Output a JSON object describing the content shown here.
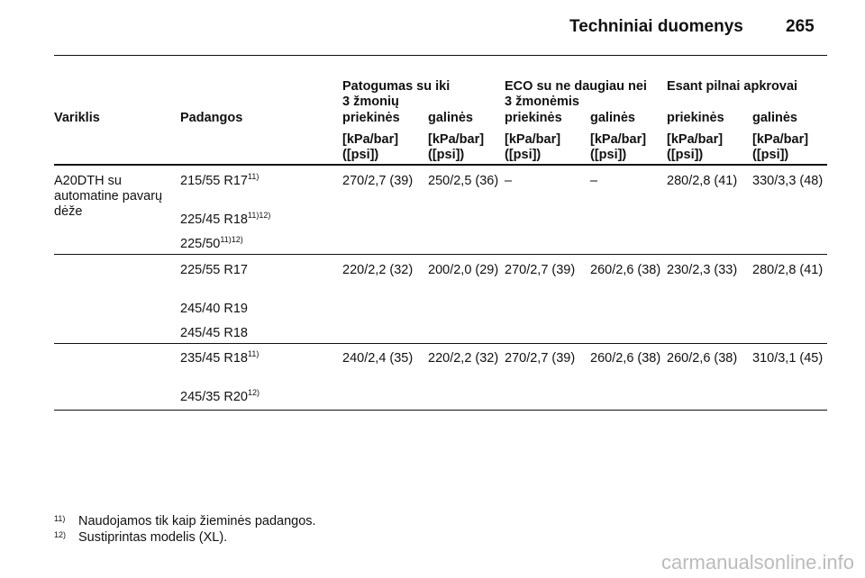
{
  "header": {
    "title": "Techniniai duomenys",
    "page": "265"
  },
  "table": {
    "group_headers": [
      "Patogumas su iki\n3 žmonių",
      "ECO su ne daugiau nei\n3 žmonėmis",
      "Esant pilnai apkrovai"
    ],
    "columns": [
      "Variklis",
      "Padangos",
      "priekinės",
      "galinės",
      "priekinės",
      "galinės",
      "priekinės",
      "galinės"
    ],
    "units": [
      "[kPa/bar]\n([psi])",
      "[kPa/bar]\n([psi])",
      "[kPa/bar]\n([psi])",
      "[kPa/bar]\n([psi])",
      "[kPa/bar]\n([psi])",
      "[kPa/bar]\n([psi])"
    ],
    "rows": [
      {
        "engine": "A20DTH su\nautomatine pavarų\ndėže",
        "tires": [
          {
            "size": "215/55 R17",
            "note": "11)"
          },
          {
            "size": "225/45 R18",
            "note": "11)12)"
          },
          {
            "size": "225/50",
            "note": "11)12)"
          }
        ],
        "values": [
          "270/2,7 (39)",
          "250/2,5 (36)",
          "–",
          "–",
          "280/2,8 (41)",
          "330/3,3 (48)"
        ]
      },
      {
        "tires": [
          {
            "size": "225/55 R17"
          },
          {
            "size": "245/40 R19"
          },
          {
            "size": "245/45 R18"
          }
        ],
        "values": [
          "220/2,2 (32)",
          "200/2,0 (29)",
          "270/2,7 (39)",
          "260/2,6 (38)",
          "230/2,3 (33)",
          "280/2,8 (41)"
        ]
      },
      {
        "tires": [
          {
            "size": "235/45 R18",
            "note": "11)"
          },
          {
            "size": "245/35 R20",
            "note": "12)"
          }
        ],
        "values": [
          "240/2,4 (35)",
          "220/2,2 (32)",
          "270/2,7 (39)",
          "260/2,6 (38)",
          "260/2,6 (38)",
          "310/3,1 (45)"
        ]
      }
    ]
  },
  "footnotes": [
    {
      "mark": "11)",
      "text": "Naudojamos tik kaip žieminės padangos."
    },
    {
      "mark": "12)",
      "text": "Sustiprintas modelis (XL)."
    }
  ],
  "watermark": "carmanualsonline.info"
}
